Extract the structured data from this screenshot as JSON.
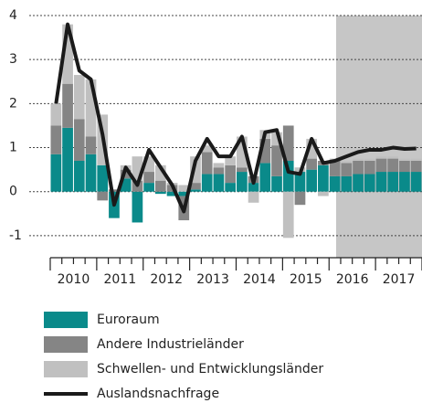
{
  "chart_data": {
    "type": "bar",
    "categories": [
      "2010",
      null,
      null,
      null,
      "2011",
      null,
      null,
      null,
      "2012",
      null,
      null,
      null,
      "2013",
      null,
      null,
      null,
      "2014",
      null,
      null,
      null,
      "2015",
      null,
      null,
      null,
      "2016",
      null,
      null,
      null,
      "2017",
      null,
      null,
      null
    ],
    "series": [
      {
        "name": "Euroraum",
        "color": "#0a8a8a",
        "values": [
          0.85,
          1.45,
          0.7,
          0.85,
          0.6,
          -0.6,
          0.3,
          -0.7,
          0.2,
          -0.05,
          -0.1,
          -0.1,
          0.05,
          0.4,
          0.4,
          0.2,
          0.45,
          0.2,
          0.65,
          0.35,
          0.7,
          0.45,
          0.5,
          0.6,
          0.35,
          0.35,
          0.4,
          0.4,
          0.45,
          0.45,
          0.45,
          0.45
        ]
      },
      {
        "name": "Andere Industrieländer",
        "color": "#858585",
        "values": [
          0.65,
          1.0,
          0.95,
          0.4,
          -0.2,
          0.05,
          0.2,
          0.25,
          0.25,
          0.25,
          0.15,
          -0.55,
          0.15,
          0.5,
          0.15,
          0.4,
          0.1,
          0.15,
          0.55,
          0.7,
          0.8,
          -0.3,
          0.25,
          0.1,
          0.35,
          0.3,
          0.3,
          0.3,
          0.3,
          0.3,
          0.25,
          0.25
        ]
      },
      {
        "name": "Schwellen- und Entwicklungsländer",
        "color": "#c0c0c0",
        "values": [
          0.5,
          1.35,
          1.0,
          1.3,
          1.15,
          0.0,
          0.1,
          0.55,
          0.35,
          0.35,
          0.05,
          0.15,
          0.6,
          0.15,
          0.1,
          0.2,
          0.7,
          -0.25,
          0.2,
          0.3,
          -1.05,
          0.1,
          0.45,
          -0.1,
          0.05,
          0.05,
          0.05,
          0.05,
          0.05,
          0.05,
          0.05,
          0.05
        ]
      },
      {
        "name": "Auslandsnachfrage",
        "type": "line",
        "color": "#1a1a1a",
        "values": [
          2.0,
          3.8,
          2.75,
          2.55,
          1.3,
          -0.3,
          0.55,
          0.15,
          0.95,
          0.55,
          0.15,
          -0.45,
          0.7,
          1.2,
          0.8,
          0.8,
          1.25,
          0.2,
          1.35,
          1.4,
          0.45,
          0.4,
          1.2,
          0.65,
          0.7,
          0.8,
          0.9,
          0.95,
          0.95,
          1.0,
          0.97,
          0.98
        ]
      }
    ],
    "ylim": [
      -1.5,
      4
    ],
    "yticks": [
      -1,
      0,
      1,
      2,
      3,
      4
    ],
    "grid": true
  }
}
